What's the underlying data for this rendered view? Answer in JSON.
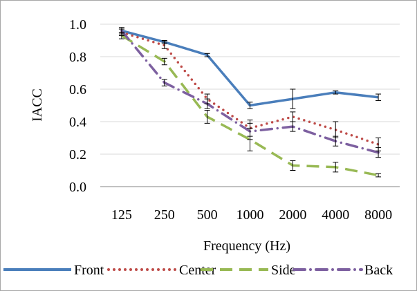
{
  "chart_data": {
    "type": "line",
    "title": "",
    "xlabel": "Frequency (Hz)",
    "ylabel": "IACC",
    "categories": [
      "125",
      "250",
      "500",
      "1000",
      "2000",
      "4000",
      "8000"
    ],
    "ylim": [
      0.0,
      1.0
    ],
    "yticks": [
      "0.0",
      "0.2",
      "0.4",
      "0.6",
      "0.8",
      "1.0"
    ],
    "grid": true,
    "legend_position": "bottom",
    "series": [
      {
        "name": "Front",
        "color": "#4a7ebb",
        "style": "solid",
        "values": [
          0.96,
          0.89,
          0.81,
          0.5,
          0.54,
          0.58,
          0.55
        ],
        "error": [
          0.01,
          0.01,
          0.01,
          0.02,
          0.06,
          0.01,
          0.02
        ]
      },
      {
        "name": "Center",
        "color": "#be4b48",
        "style": "dotted",
        "values": [
          0.95,
          0.87,
          0.54,
          0.36,
          0.43,
          0.35,
          0.26
        ],
        "error": [
          0.02,
          0.02,
          0.03,
          0.05,
          0.03,
          0.05,
          0.04
        ]
      },
      {
        "name": "Side",
        "color": "#98b954",
        "style": "dashed",
        "values": [
          0.93,
          0.77,
          0.43,
          0.29,
          0.13,
          0.12,
          0.07
        ],
        "error": [
          0.02,
          0.02,
          0.04,
          0.07,
          0.03,
          0.03,
          0.01
        ]
      },
      {
        "name": "Back",
        "color": "#7d60a0",
        "style": "dashdot",
        "values": [
          0.96,
          0.64,
          0.51,
          0.34,
          0.37,
          0.28,
          0.21
        ],
        "error": [
          0.02,
          0.02,
          0.03,
          0.05,
          0.03,
          0.03,
          0.03
        ]
      }
    ]
  }
}
